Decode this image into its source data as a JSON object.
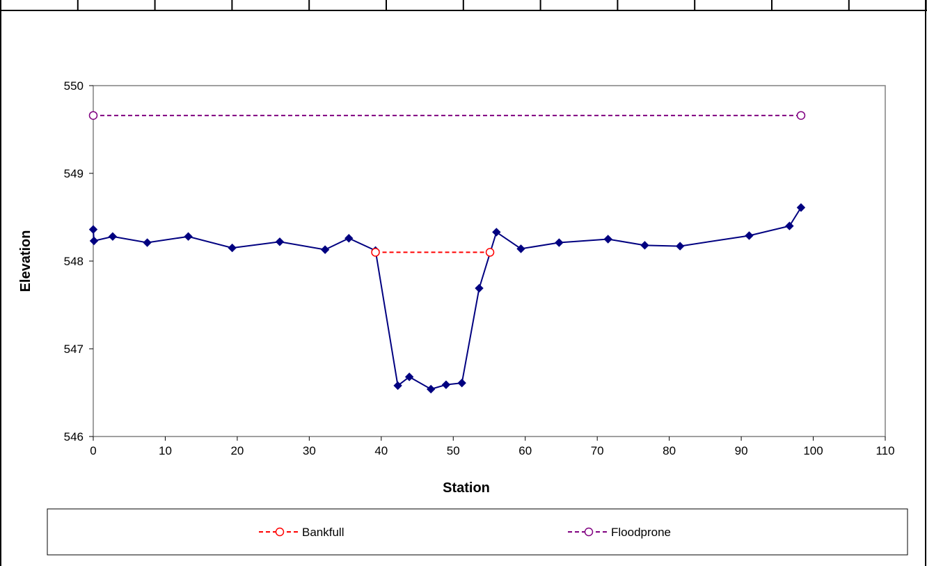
{
  "chart_data": {
    "type": "line",
    "xlabel": "Station",
    "ylabel": "Elevation",
    "xlim": [
      0,
      110
    ],
    "ylim": [
      546,
      550
    ],
    "x_ticks": [
      0,
      10,
      20,
      30,
      40,
      50,
      60,
      70,
      80,
      90,
      100,
      110
    ],
    "y_ticks": [
      546,
      547,
      548,
      549,
      550
    ],
    "grid": false,
    "legend_position": "bottom",
    "series": [
      {
        "marker": "diamond",
        "line_style": "solid",
        "color": "#000080",
        "in_legend": false,
        "x": [
          0,
          0.1,
          2.7,
          7.5,
          13.2,
          19.3,
          25.9,
          32.2,
          35.5,
          39.2,
          42.3,
          43.9,
          46.9,
          49.0,
          51.2,
          53.6,
          56.0,
          59.4,
          64.7,
          71.5,
          76.6,
          81.5,
          91.1,
          96.7,
          98.3
        ],
        "y": [
          548.36,
          548.23,
          548.28,
          548.21,
          548.28,
          548.15,
          548.22,
          548.13,
          548.26,
          548.12,
          546.58,
          546.68,
          546.54,
          546.59,
          546.61,
          547.69,
          548.33,
          548.14,
          548.21,
          548.25,
          548.18,
          548.17,
          548.29,
          548.4,
          548.61
        ]
      },
      {
        "name": "Bankfull",
        "marker": "circle-open",
        "line_style": "dashed",
        "color": "#ff0000",
        "x": [
          39.2,
          55.1
        ],
        "y": [
          548.1,
          548.1
        ]
      },
      {
        "name": "Floodprone",
        "marker": "circle-open",
        "line_style": "dashed",
        "color": "#800080",
        "x": [
          0,
          98.3
        ],
        "y": [
          549.66,
          549.66
        ]
      }
    ]
  }
}
